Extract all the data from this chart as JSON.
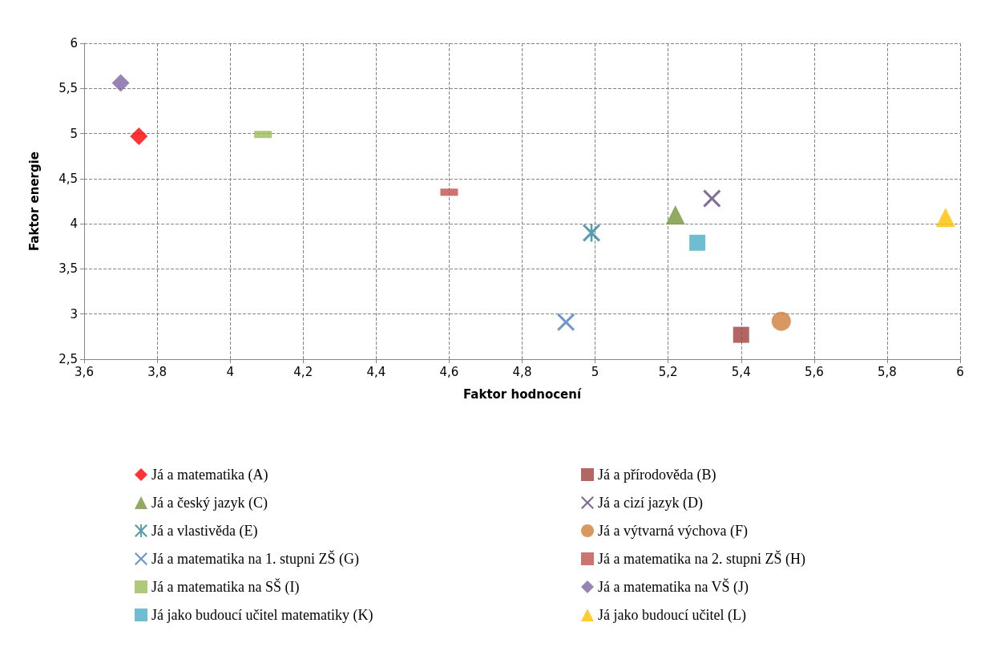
{
  "chart_data": {
    "type": "scatter",
    "xlabel": "Faktor hodnocení",
    "ylabel": "Faktor energie",
    "xlim": [
      3.6,
      6
    ],
    "ylim": [
      2.5,
      6
    ],
    "xticks": [
      {
        "value": 3.6,
        "label": "3,6"
      },
      {
        "value": 3.8,
        "label": "3,8"
      },
      {
        "value": 4,
        "label": "4"
      },
      {
        "value": 4.2,
        "label": "4,2"
      },
      {
        "value": 4.4,
        "label": "4,4"
      },
      {
        "value": 4.6,
        "label": "4,6"
      },
      {
        "value": 4.8,
        "label": "4,8"
      },
      {
        "value": 5,
        "label": "5"
      },
      {
        "value": 5.2,
        "label": "5,2"
      },
      {
        "value": 5.4,
        "label": "5,4"
      },
      {
        "value": 5.6,
        "label": "5,6"
      },
      {
        "value": 5.8,
        "label": "5,8"
      },
      {
        "value": 6,
        "label": "6"
      }
    ],
    "yticks": [
      {
        "value": 2.5,
        "label": "2,5"
      },
      {
        "value": 3,
        "label": "3"
      },
      {
        "value": 3.5,
        "label": "3,5"
      },
      {
        "value": 4,
        "label": "4"
      },
      {
        "value": 4.5,
        "label": "4,5"
      },
      {
        "value": 5,
        "label": "5"
      },
      {
        "value": 5.5,
        "label": "5,5"
      },
      {
        "value": 6,
        "label": "6"
      }
    ],
    "grid": true,
    "legend": "bottom",
    "series": [
      {
        "name": "Já a matematika (A)",
        "color": "#ff0000",
        "marker": "diamond",
        "x": [
          3.75
        ],
        "values": [
          4.97
        ]
      },
      {
        "name": "Já a přírodověda (B)",
        "color": "#a0403c",
        "marker": "square",
        "x": [
          5.4
        ],
        "values": [
          2.77
        ]
      },
      {
        "name": "Já a český jazyk (C)",
        "color": "#77933c",
        "marker": "triangle",
        "x": [
          5.22
        ],
        "values": [
          4.1
        ]
      },
      {
        "name": "Já a cizí jazyk (D)",
        "color": "#604a7b",
        "marker": "cross",
        "x": [
          5.32
        ],
        "values": [
          4.28
        ]
      },
      {
        "name": "Já a vlastivěda (E)",
        "color": "#31849b",
        "marker": "star",
        "x": [
          4.99
        ],
        "values": [
          3.9
        ]
      },
      {
        "name": "Já a výtvarná výchova (F)",
        "color": "#d07d3a",
        "marker": "circle",
        "x": [
          5.51
        ],
        "values": [
          2.92
        ]
      },
      {
        "name": "Já a matematika na 1. stupni ZŠ (G)",
        "color": "#4a7ebb",
        "marker": "cross",
        "x": [
          4.92
        ],
        "values": [
          2.91
        ]
      },
      {
        "name": "Já a matematika na 2. stupni ZŠ (H)",
        "color": "#c0504d",
        "x": [
          4.6
        ],
        "values": [
          4.35
        ]
      },
      {
        "name": "Já a matematika na SŠ (I)",
        "color": "#9bbb59",
        "x": [
          4.09
        ],
        "values": [
          4.99
        ]
      },
      {
        "name": "Já a matematika na VŠ (J)",
        "color": "#8064a2",
        "marker": "diamond",
        "x": [
          3.7
        ],
        "values": [
          5.56
        ]
      },
      {
        "name": "Já jako budoucí učitel matematiky (K)",
        "color": "#4bacc6",
        "marker": "square",
        "x": [
          5.28
        ],
        "values": [
          3.79
        ]
      },
      {
        "name": "Já jako budoucí učitel (L)",
        "color": "#ffc000",
        "marker": "triangle",
        "x": [
          5.96
        ],
        "values": [
          4.07
        ]
      }
    ]
  }
}
